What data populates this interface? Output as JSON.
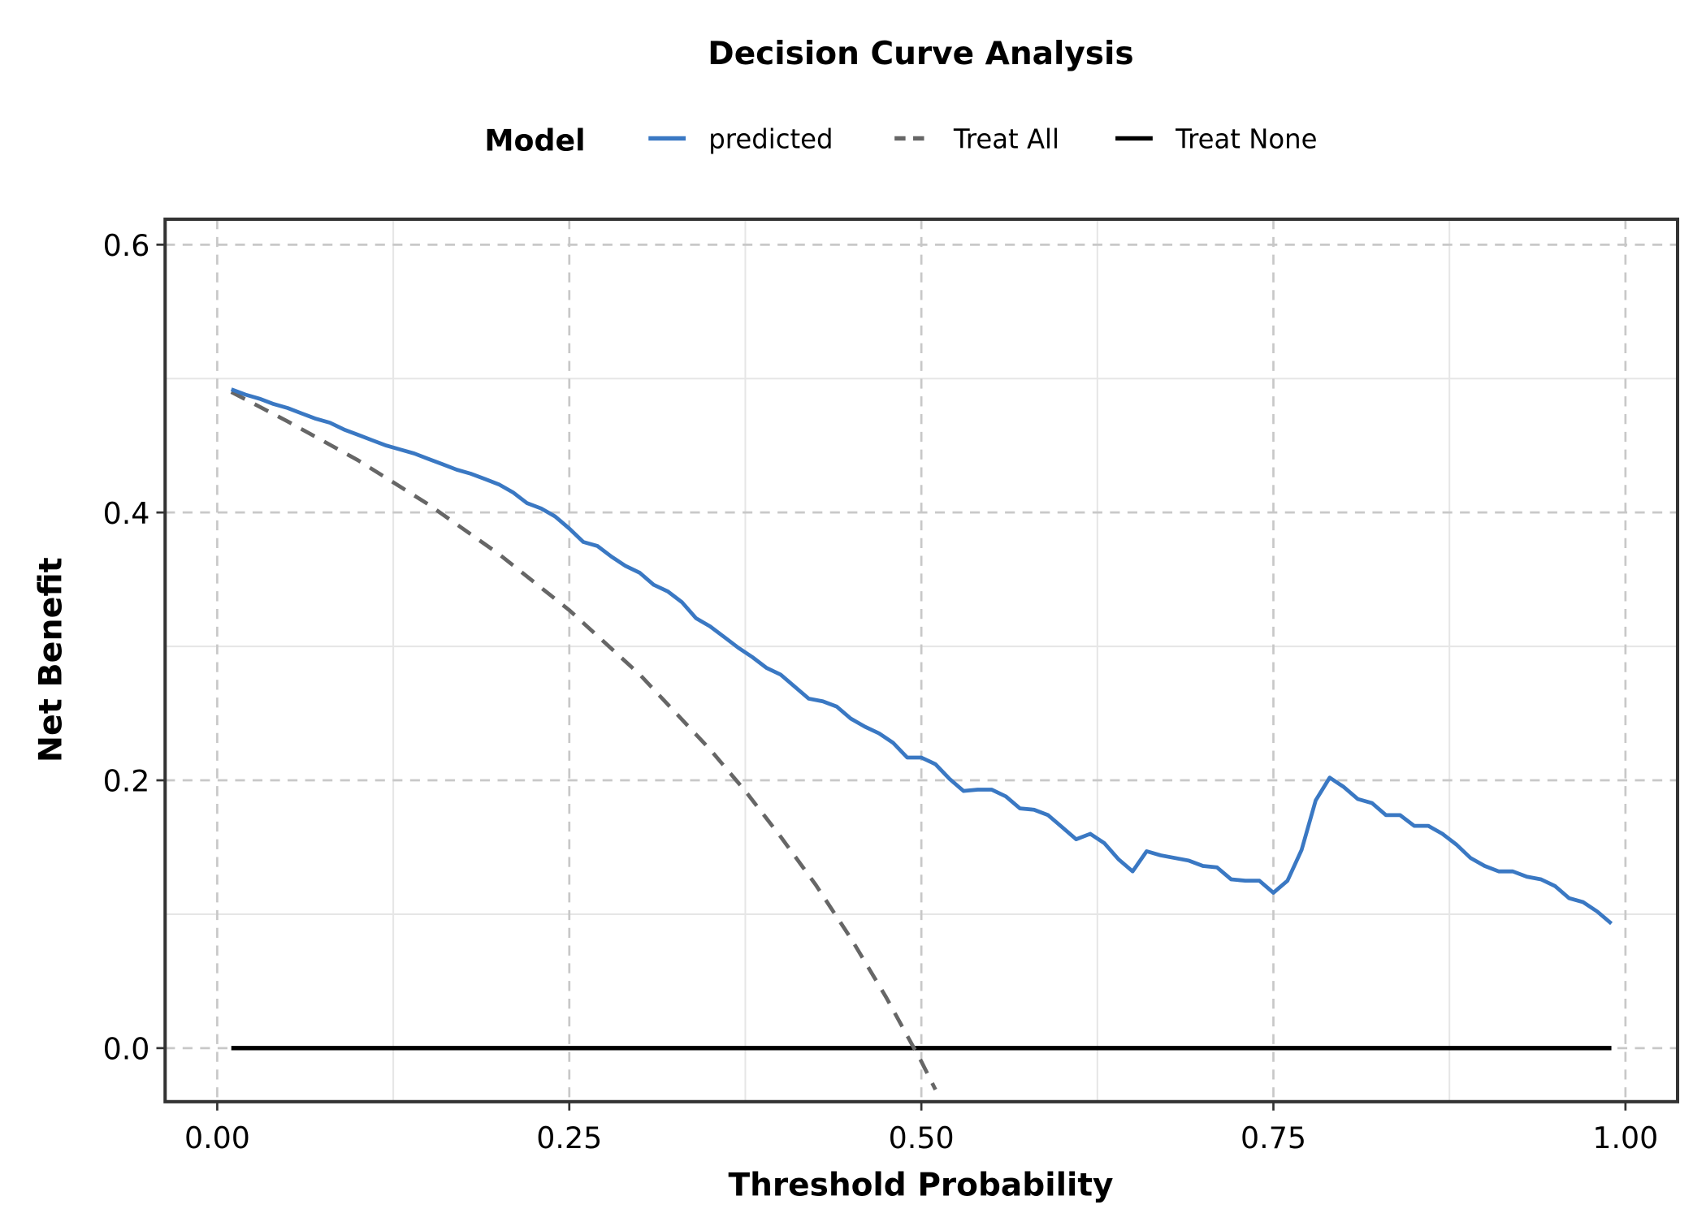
{
  "chart_data": {
    "type": "line",
    "title": "Decision Curve Analysis",
    "xlabel": "Threshold Probability",
    "ylabel": "Net Benefit",
    "xlim": [
      -0.037,
      1.037
    ],
    "ylim": [
      -0.04,
      0.619
    ],
    "xticks": [
      0,
      0.25,
      0.5,
      0.75,
      1.0
    ],
    "xtick_labels": [
      "0.00",
      "0.25",
      "0.50",
      "0.75",
      "1.00"
    ],
    "yticks": [
      0,
      0.2,
      0.4,
      0.6
    ],
    "ytick_labels": [
      "0.0",
      "0.2",
      "0.4",
      "0.6"
    ],
    "grid": true,
    "legend": {
      "title": "Model",
      "placement": "top"
    },
    "series": [
      {
        "name": "predicted",
        "color": "#3A78C3",
        "dash": "solid",
        "x": [
          0.01,
          0.02,
          0.03,
          0.04,
          0.05,
          0.06,
          0.07,
          0.08,
          0.09,
          0.1,
          0.11,
          0.12,
          0.13,
          0.14,
          0.15,
          0.16,
          0.17,
          0.18,
          0.19,
          0.2,
          0.21,
          0.22,
          0.23,
          0.24,
          0.25,
          0.26,
          0.27,
          0.28,
          0.29,
          0.3,
          0.31,
          0.32,
          0.33,
          0.34,
          0.35,
          0.36,
          0.37,
          0.38,
          0.39,
          0.4,
          0.41,
          0.42,
          0.43,
          0.44,
          0.45,
          0.46,
          0.47,
          0.48,
          0.49,
          0.5,
          0.51,
          0.52,
          0.53,
          0.54,
          0.55,
          0.56,
          0.57,
          0.58,
          0.59,
          0.6,
          0.61,
          0.62,
          0.63,
          0.64,
          0.65,
          0.66,
          0.67,
          0.68,
          0.69,
          0.7,
          0.71,
          0.72,
          0.73,
          0.74,
          0.75,
          0.76,
          0.77,
          0.78,
          0.79,
          0.8,
          0.81,
          0.82,
          0.83,
          0.84,
          0.85,
          0.86,
          0.87,
          0.88,
          0.89,
          0.9,
          0.91,
          0.92,
          0.93,
          0.94,
          0.95,
          0.96,
          0.97,
          0.98,
          0.99
        ],
        "y": [
          0.492,
          0.488,
          0.485,
          0.481,
          0.478,
          0.474,
          0.47,
          0.467,
          0.462,
          0.458,
          0.454,
          0.45,
          0.447,
          0.444,
          0.44,
          0.436,
          0.432,
          0.429,
          0.425,
          0.421,
          0.415,
          0.407,
          0.403,
          0.397,
          0.388,
          0.378,
          0.375,
          0.367,
          0.36,
          0.355,
          0.346,
          0.341,
          0.333,
          0.321,
          0.315,
          0.307,
          0.299,
          0.292,
          0.284,
          0.279,
          0.27,
          0.261,
          0.259,
          0.255,
          0.246,
          0.24,
          0.235,
          0.228,
          0.217,
          0.217,
          0.212,
          0.201,
          0.192,
          0.193,
          0.193,
          0.188,
          0.179,
          0.178,
          0.174,
          0.165,
          0.156,
          0.16,
          0.153,
          0.141,
          0.132,
          0.147,
          0.144,
          0.142,
          0.14,
          0.136,
          0.135,
          0.126,
          0.125,
          0.125,
          0.116,
          0.125,
          0.148,
          0.185,
          0.202,
          0.195,
          0.186,
          0.183,
          0.174,
          0.174,
          0.166,
          0.166,
          0.16,
          0.152,
          0.142,
          0.136,
          0.132,
          0.132,
          0.128,
          0.126,
          0.121,
          0.112,
          0.109,
          0.102,
          0.093
        ]
      },
      {
        "name": "Treat All",
        "color": "#666666",
        "dash": "dashed",
        "x": [
          0.01,
          0.05,
          0.1,
          0.15,
          0.2,
          0.25,
          0.3,
          0.35,
          0.375,
          0.4,
          0.425,
          0.45,
          0.475,
          0.5,
          0.51
        ],
        "y": [
          0.49,
          0.468,
          0.439,
          0.406,
          0.369,
          0.327,
          0.279,
          0.223,
          0.192,
          0.158,
          0.122,
          0.082,
          0.038,
          -0.01,
          -0.031
        ]
      },
      {
        "name": "Treat None",
        "color": "#000000",
        "dash": "solid",
        "x": [
          0.01,
          0.99
        ],
        "y": [
          0,
          0
        ]
      }
    ]
  }
}
